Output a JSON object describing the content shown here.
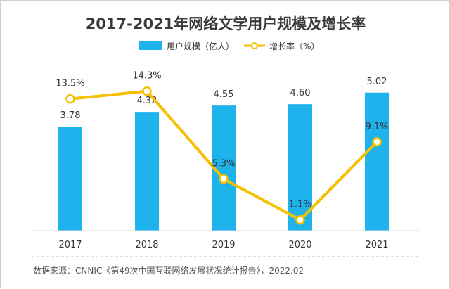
{
  "chart_data": {
    "type": "bar",
    "title": "2017-2021年网络文学用户规模及增长率",
    "categories": [
      "2017",
      "2018",
      "2019",
      "2020",
      "2021"
    ],
    "series": [
      {
        "name": "用户规模（亿人）",
        "kind": "bar",
        "values": [
          3.78,
          4.32,
          4.55,
          4.6,
          5.02
        ],
        "labels": [
          "3.78",
          "4.32",
          "4.55",
          "4.60",
          "5.02"
        ],
        "color": "#1FB3EE"
      },
      {
        "name": "增长率（%）",
        "kind": "line",
        "values": [
          13.5,
          14.3,
          5.3,
          1.1,
          9.1
        ],
        "labels": [
          "13.5%",
          "14.3%",
          "5.3%",
          "1.1%",
          "9.1%"
        ],
        "color": "#F5C000"
      }
    ],
    "ylim_bar": [
      0,
      5.5
    ],
    "ylim_line": [
      0,
      15.5
    ],
    "grid": false,
    "legend": "top-center"
  },
  "source": "数据来源：CNNIC《第49次中国互联网络发展状况统计报告》，2022.02"
}
